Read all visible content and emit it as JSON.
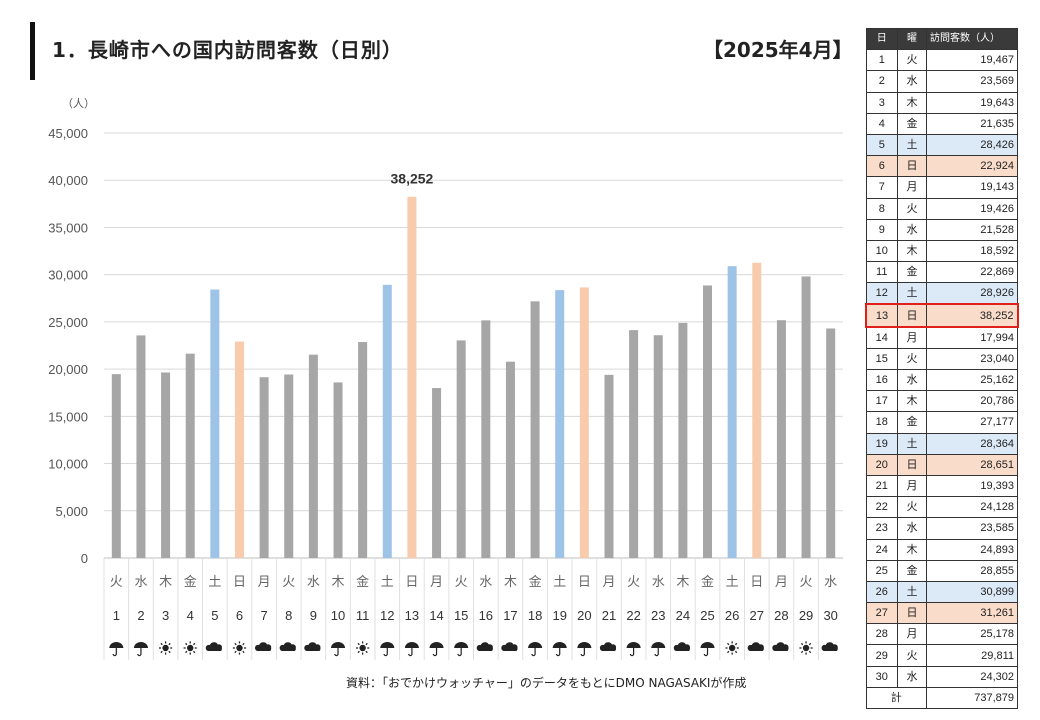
{
  "header": {
    "title": "1．長崎市への国内訪問客数（日別）",
    "period": "【2025年4月】"
  },
  "source": "資料：「おでかけウォッチャー」のデータをもとにDMO NAGASAKIが作成",
  "colors": {
    "weekday": "#a6a6a6",
    "saturday": "#9dc3e6",
    "sunday": "#f8cbad",
    "highlight": "#e0201b",
    "table_header": "#3a3a3a"
  },
  "chart_data": {
    "type": "bar",
    "ylabel": "（人）",
    "ylim": [
      0,
      45000
    ],
    "yticks": [
      0,
      5000,
      10000,
      15000,
      20000,
      25000,
      30000,
      35000,
      40000,
      45000
    ],
    "ytick_labels": [
      "0",
      "5,000",
      "10,000",
      "15,000",
      "20,000",
      "25,000",
      "30,000",
      "35,000",
      "40,000",
      "45,000"
    ],
    "grid": true,
    "categories": [
      "1",
      "2",
      "3",
      "4",
      "5",
      "6",
      "7",
      "8",
      "9",
      "10",
      "11",
      "12",
      "13",
      "14",
      "15",
      "16",
      "17",
      "18",
      "19",
      "20",
      "21",
      "22",
      "23",
      "24",
      "25",
      "26",
      "27",
      "28",
      "29",
      "30"
    ],
    "weekdays": [
      "火",
      "水",
      "木",
      "金",
      "土",
      "日",
      "月",
      "火",
      "水",
      "木",
      "金",
      "土",
      "日",
      "月",
      "火",
      "水",
      "木",
      "金",
      "土",
      "日",
      "月",
      "火",
      "水",
      "木",
      "金",
      "土",
      "日",
      "月",
      "火",
      "水"
    ],
    "weather": [
      "umbrella-icon",
      "umbrella-icon",
      "sun-icon",
      "sun-icon",
      "cloud-icon",
      "sun-icon",
      "cloud-icon",
      "cloud-icon",
      "cloud-icon",
      "umbrella-icon",
      "sun-icon",
      "umbrella-icon",
      "umbrella-icon",
      "umbrella-icon",
      "umbrella-icon",
      "cloud-icon",
      "cloud-icon",
      "umbrella-icon",
      "umbrella-icon",
      "umbrella-icon",
      "cloud-icon",
      "umbrella-icon",
      "umbrella-icon",
      "cloud-icon",
      "umbrella-icon",
      "sun-icon",
      "cloud-icon",
      "cloud-icon",
      "sun-icon",
      "cloud-icon"
    ],
    "values": [
      19467,
      23569,
      19643,
      21635,
      28426,
      22924,
      19143,
      19426,
      21528,
      18592,
      22869,
      28926,
      38252,
      17994,
      23040,
      25162,
      20786,
      27177,
      28364,
      28651,
      19393,
      24128,
      23585,
      24893,
      28855,
      30899,
      31261,
      25178,
      29811,
      24302
    ],
    "data_labels": [
      {
        "index": 12,
        "text": "38,252"
      }
    ]
  },
  "table": {
    "headers": {
      "day": "日",
      "weekday": "曜",
      "visitors": "訪問客数（人）"
    },
    "rows": [
      {
        "day": "1",
        "wd": "火",
        "val": "19,467"
      },
      {
        "day": "2",
        "wd": "水",
        "val": "23,569"
      },
      {
        "day": "3",
        "wd": "木",
        "val": "19,643"
      },
      {
        "day": "4",
        "wd": "金",
        "val": "21,635"
      },
      {
        "day": "5",
        "wd": "土",
        "val": "28,426"
      },
      {
        "day": "6",
        "wd": "日",
        "val": "22,924"
      },
      {
        "day": "7",
        "wd": "月",
        "val": "19,143"
      },
      {
        "day": "8",
        "wd": "火",
        "val": "19,426"
      },
      {
        "day": "9",
        "wd": "水",
        "val": "21,528"
      },
      {
        "day": "10",
        "wd": "木",
        "val": "18,592"
      },
      {
        "day": "11",
        "wd": "金",
        "val": "22,869"
      },
      {
        "day": "12",
        "wd": "土",
        "val": "28,926"
      },
      {
        "day": "13",
        "wd": "日",
        "val": "38,252"
      },
      {
        "day": "14",
        "wd": "月",
        "val": "17,994"
      },
      {
        "day": "15",
        "wd": "火",
        "val": "23,040"
      },
      {
        "day": "16",
        "wd": "水",
        "val": "25,162"
      },
      {
        "day": "17",
        "wd": "木",
        "val": "20,786"
      },
      {
        "day": "18",
        "wd": "金",
        "val": "27,177"
      },
      {
        "day": "19",
        "wd": "土",
        "val": "28,364"
      },
      {
        "day": "20",
        "wd": "日",
        "val": "28,651"
      },
      {
        "day": "21",
        "wd": "月",
        "val": "19,393"
      },
      {
        "day": "22",
        "wd": "火",
        "val": "24,128"
      },
      {
        "day": "23",
        "wd": "水",
        "val": "23,585"
      },
      {
        "day": "24",
        "wd": "木",
        "val": "24,893"
      },
      {
        "day": "25",
        "wd": "金",
        "val": "28,855"
      },
      {
        "day": "26",
        "wd": "土",
        "val": "30,899"
      },
      {
        "day": "27",
        "wd": "日",
        "val": "31,261"
      },
      {
        "day": "28",
        "wd": "月",
        "val": "25,178"
      },
      {
        "day": "29",
        "wd": "火",
        "val": "29,811"
      },
      {
        "day": "30",
        "wd": "水",
        "val": "24,302"
      }
    ],
    "total_label": "計",
    "total": "737,879",
    "highlight_day": "13"
  }
}
